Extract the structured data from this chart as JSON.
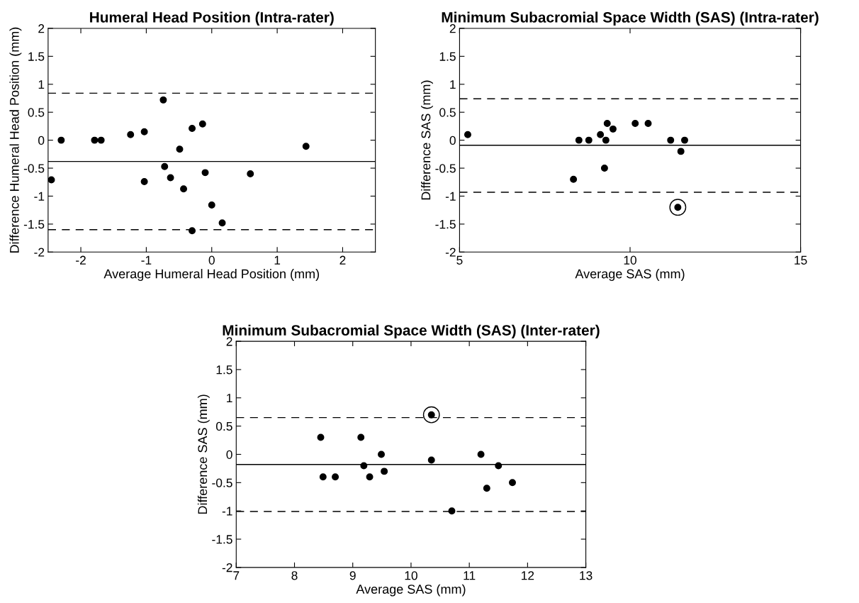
{
  "chart_data": [
    {
      "type": "scatter",
      "title": "Humeral Head Position (Intra-rater)",
      "xlabel": "Average Humeral Head Position (mm)",
      "ylabel": "Difference Humeral Head Position (mm)",
      "xlim": [
        -2.5,
        2.5
      ],
      "ylim": [
        -2,
        2
      ],
      "xticks": [
        -2,
        -1,
        0,
        1,
        2
      ],
      "yticks": [
        -2,
        -1.5,
        -1,
        -0.5,
        0,
        0.5,
        1,
        1.5,
        2
      ],
      "grid": false,
      "legend": false,
      "marker": "circle",
      "series": [
        {
          "color": "#000000",
          "x": [
            -2.45,
            -2.3,
            -1.79,
            -1.69,
            -1.24,
            -1.03,
            -1.03,
            -0.74,
            -0.72,
            -0.63,
            -0.49,
            -0.43,
            -0.3,
            -0.3,
            -0.14,
            -0.1,
            0.0,
            0.16,
            0.59,
            1.44
          ],
          "values": [
            -0.71,
            0,
            0,
            0,
            0.1,
            0.15,
            -0.74,
            0.72,
            -0.47,
            -0.67,
            -0.16,
            -0.87,
            0.21,
            -1.62,
            0.29,
            -0.58,
            -1.16,
            -1.48,
            -0.6,
            -0.11
          ]
        }
      ],
      "ref_lines": [
        {
          "axis": "y",
          "value": 0.84,
          "color": "#000000",
          "line_style": "dashed"
        },
        {
          "axis": "y",
          "value": -0.38,
          "color": "#000000",
          "line_style": "solid"
        },
        {
          "axis": "y",
          "value": -1.6,
          "color": "#000000",
          "line_style": "dashed"
        }
      ]
    },
    {
      "type": "scatter",
      "title": "Minimum Subacromial Space Width (SAS) (Intra-rater)",
      "xlabel": "Average SAS (mm)",
      "ylabel": "Difference SAS (mm)",
      "xlim": [
        5,
        15
      ],
      "ylim": [
        -2,
        2
      ],
      "xticks": [
        5,
        10,
        15
      ],
      "yticks": [
        -2,
        -1.5,
        -1,
        -0.5,
        0,
        0.5,
        1,
        1.5,
        2
      ],
      "grid": false,
      "legend": false,
      "marker": "circle",
      "series": [
        {
          "color": "#000000",
          "x": [
            5.24,
            8.34,
            8.5,
            8.79,
            9.13,
            9.29,
            9.25,
            9.33,
            9.5,
            10.15,
            10.53,
            11.19,
            11.6,
            11.49,
            11.4
          ],
          "values": [
            0.1,
            -0.7,
            0,
            0,
            0.1,
            0,
            -0.5,
            0.3,
            0.2,
            0.3,
            0.3,
            0,
            0,
            -0.2,
            -1.2
          ]
        },
        {
          "type": "bubble",
          "color": "#000000",
          "x": [
            11.4
          ],
          "values": [
            -1.2
          ],
          "sizes": [
            1
          ]
        }
      ],
      "ref_lines": [
        {
          "axis": "y",
          "value": 0.74,
          "color": "#000000",
          "line_style": "dashed"
        },
        {
          "axis": "y",
          "value": -0.09,
          "color": "#000000",
          "line_style": "solid"
        },
        {
          "axis": "y",
          "value": -0.93,
          "color": "#000000",
          "line_style": "dashed"
        }
      ]
    },
    {
      "type": "scatter",
      "title": "Minimum Subacromial Space Width (SAS) (Inter-rater)",
      "xlabel": "Average SAS (mm)",
      "ylabel": "Difference SAS (mm)",
      "xlim": [
        7,
        13
      ],
      "ylim": [
        -2,
        2
      ],
      "xticks": [
        7,
        8,
        9,
        10,
        11,
        12,
        13
      ],
      "yticks": [
        -2,
        -1.5,
        -1,
        -0.5,
        0,
        0.5,
        1,
        1.5,
        2
      ],
      "grid": false,
      "legend": false,
      "marker": "circle",
      "series": [
        {
          "color": "#000000",
          "x": [
            8.45,
            8.49,
            8.7,
            9.14,
            9.19,
            9.29,
            9.49,
            9.54,
            10.35,
            10.35,
            10.7,
            11.2,
            11.3,
            11.5,
            11.74
          ],
          "values": [
            0.3,
            -0.4,
            -0.4,
            0.3,
            -0.2,
            -0.4,
            0,
            -0.3,
            0.7,
            -0.1,
            -1.0,
            0,
            -0.6,
            -0.2,
            -0.5
          ]
        },
        {
          "type": "bubble",
          "color": "#000000",
          "x": [
            10.35
          ],
          "values": [
            0.7
          ],
          "sizes": [
            1
          ]
        }
      ],
      "ref_lines": [
        {
          "axis": "y",
          "value": 0.65,
          "color": "#000000",
          "line_style": "dashed"
        },
        {
          "axis": "y",
          "value": -0.18,
          "color": "#000000",
          "line_style": "solid"
        },
        {
          "axis": "y",
          "value": -1.01,
          "color": "#000000",
          "line_style": "dashed"
        }
      ]
    }
  ]
}
